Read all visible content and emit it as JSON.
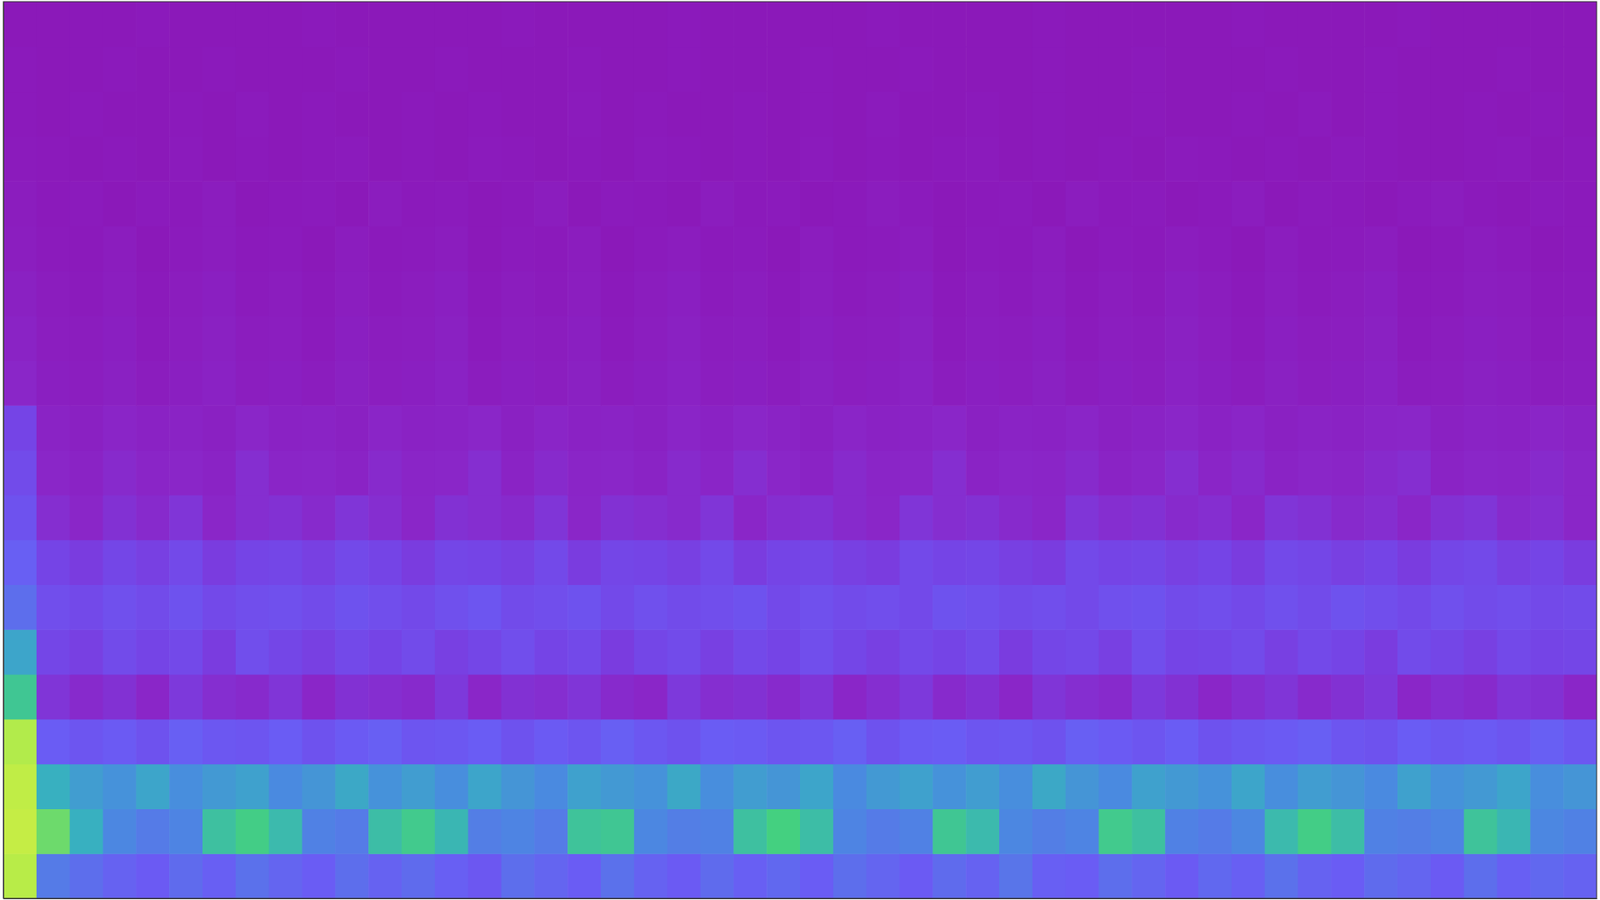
{
  "chart_data": {
    "type": "heatmap",
    "tick_labels": false,
    "xlim": [
      0,
      48
    ],
    "ylim": [
      0,
      20
    ],
    "zlim": [
      0,
      1
    ],
    "z": [
      [
        0.85,
        0.4,
        0.36,
        0.32,
        0.29,
        0.35,
        0.31,
        0.37,
        0.33,
        0.3,
        0.36,
        0.32,
        0.35,
        0.31,
        0.28,
        0.36,
        0.33,
        0.3,
        0.37,
        0.32,
        0.29,
        0.35,
        0.31,
        0.34,
        0.3,
        0.36,
        0.33,
        0.29,
        0.35,
        0.32,
        0.38,
        0.31,
        0.3,
        0.36,
        0.33,
        0.29,
        0.34,
        0.31,
        0.37,
        0.32,
        0.3,
        0.35,
        0.33,
        0.29,
        0.36,
        0.31,
        0.34,
        0.32
      ],
      [
        0.9,
        0.72,
        0.55,
        0.44,
        0.4,
        0.43,
        0.6,
        0.64,
        0.58,
        0.42,
        0.4,
        0.59,
        0.63,
        0.57,
        0.41,
        0.43,
        0.4,
        0.61,
        0.62,
        0.44,
        0.41,
        0.42,
        0.6,
        0.65,
        0.59,
        0.43,
        0.4,
        0.42,
        0.62,
        0.58,
        0.44,
        0.41,
        0.43,
        0.63,
        0.6,
        0.42,
        0.4,
        0.44,
        0.58,
        0.64,
        0.59,
        0.42,
        0.41,
        0.43,
        0.61,
        0.57,
        0.44,
        0.42
      ],
      [
        0.88,
        0.55,
        0.5,
        0.47,
        0.52,
        0.46,
        0.49,
        0.51,
        0.45,
        0.48,
        0.53,
        0.47,
        0.5,
        0.46,
        0.52,
        0.48,
        0.45,
        0.51,
        0.49,
        0.47,
        0.53,
        0.46,
        0.5,
        0.48,
        0.52,
        0.45,
        0.49,
        0.51,
        0.47,
        0.5,
        0.46,
        0.53,
        0.48,
        0.45,
        0.51,
        0.49,
        0.47,
        0.52,
        0.46,
        0.5,
        0.48,
        0.45,
        0.51,
        0.47,
        0.49,
        0.52,
        0.46,
        0.48
      ],
      [
        0.84,
        0.3,
        0.27,
        0.29,
        0.26,
        0.31,
        0.28,
        0.27,
        0.3,
        0.26,
        0.29,
        0.31,
        0.27,
        0.28,
        0.3,
        0.26,
        0.29,
        0.27,
        0.31,
        0.28,
        0.26,
        0.3,
        0.29,
        0.27,
        0.28,
        0.31,
        0.26,
        0.29,
        0.3,
        0.27,
        0.28,
        0.26,
        0.31,
        0.29,
        0.27,
        0.3,
        0.26,
        0.28,
        0.29,
        0.31,
        0.27,
        0.26,
        0.3,
        0.28,
        0.29,
        0.27,
        0.31,
        0.28
      ],
      [
        0.62,
        0.16,
        0.13,
        0.15,
        0.12,
        0.17,
        0.14,
        0.13,
        0.16,
        0.12,
        0.15,
        0.14,
        0.13,
        0.17,
        0.12,
        0.15,
        0.14,
        0.16,
        0.13,
        0.12,
        0.17,
        0.14,
        0.15,
        0.13,
        0.16,
        0.12,
        0.14,
        0.17,
        0.13,
        0.15,
        0.12,
        0.16,
        0.14,
        0.13,
        0.17,
        0.15,
        0.12,
        0.14,
        0.16,
        0.13,
        0.15,
        0.17,
        0.12,
        0.14,
        0.13,
        0.16,
        0.15,
        0.12
      ],
      [
        0.52,
        0.21,
        0.19,
        0.23,
        0.2,
        0.22,
        0.18,
        0.24,
        0.21,
        0.19,
        0.22,
        0.2,
        0.23,
        0.19,
        0.21,
        0.24,
        0.2,
        0.22,
        0.18,
        0.21,
        0.23,
        0.19,
        0.22,
        0.2,
        0.24,
        0.21,
        0.19,
        0.22,
        0.2,
        0.23,
        0.18,
        0.21,
        0.22,
        0.19,
        0.24,
        0.2,
        0.21,
        0.23,
        0.19,
        0.22,
        0.2,
        0.18,
        0.23,
        0.21,
        0.19,
        0.22,
        0.2,
        0.21
      ],
      [
        0.36,
        0.24,
        0.22,
        0.25,
        0.23,
        0.26,
        0.22,
        0.24,
        0.25,
        0.23,
        0.26,
        0.24,
        0.22,
        0.25,
        0.27,
        0.23,
        0.24,
        0.26,
        0.22,
        0.25,
        0.23,
        0.24,
        0.26,
        0.22,
        0.25,
        0.23,
        0.24,
        0.22,
        0.26,
        0.25,
        0.23,
        0.24,
        0.22,
        0.25,
        0.26,
        0.23,
        0.24,
        0.22,
        0.25,
        0.23,
        0.26,
        0.24,
        0.22,
        0.25,
        0.23,
        0.24,
        0.22,
        0.23
      ],
      [
        0.31,
        0.2,
        0.18,
        0.21,
        0.19,
        0.22,
        0.18,
        0.2,
        0.21,
        0.19,
        0.22,
        0.2,
        0.18,
        0.21,
        0.2,
        0.19,
        0.22,
        0.18,
        0.21,
        0.2,
        0.19,
        0.22,
        0.18,
        0.2,
        0.21,
        0.19,
        0.18,
        0.22,
        0.2,
        0.21,
        0.19,
        0.18,
        0.22,
        0.2,
        0.21,
        0.19,
        0.2,
        0.18,
        0.22,
        0.21,
        0.19,
        0.2,
        0.18,
        0.21,
        0.22,
        0.19,
        0.2,
        0.18
      ],
      [
        0.26,
        0.14,
        0.12,
        0.15,
        0.13,
        0.16,
        0.12,
        0.14,
        0.15,
        0.13,
        0.16,
        0.14,
        0.12,
        0.15,
        0.14,
        0.13,
        0.16,
        0.12,
        0.15,
        0.14,
        0.13,
        0.16,
        0.12,
        0.14,
        0.15,
        0.13,
        0.12,
        0.16,
        0.14,
        0.15,
        0.13,
        0.12,
        0.16,
        0.14,
        0.15,
        0.13,
        0.14,
        0.12,
        0.16,
        0.15,
        0.13,
        0.14,
        0.12,
        0.15,
        0.16,
        0.13,
        0.14,
        0.12
      ],
      [
        0.23,
        0.12,
        0.1,
        0.13,
        0.11,
        0.12,
        0.1,
        0.14,
        0.11,
        0.12,
        0.1,
        0.13,
        0.11,
        0.12,
        0.14,
        0.1,
        0.13,
        0.11,
        0.12,
        0.1,
        0.13,
        0.11,
        0.14,
        0.12,
        0.1,
        0.13,
        0.11,
        0.12,
        0.14,
        0.1,
        0.12,
        0.11,
        0.13,
        0.1,
        0.12,
        0.14,
        0.11,
        0.13,
        0.1,
        0.12,
        0.11,
        0.13,
        0.14,
        0.1,
        0.12,
        0.11,
        0.13,
        0.12
      ],
      [
        0.2,
        0.1,
        0.08,
        0.11,
        0.09,
        0.1,
        0.08,
        0.12,
        0.09,
        0.1,
        0.08,
        0.11,
        0.09,
        0.1,
        0.12,
        0.08,
        0.11,
        0.09,
        0.1,
        0.08,
        0.11,
        0.09,
        0.12,
        0.1,
        0.08,
        0.11,
        0.09,
        0.1,
        0.12,
        0.08,
        0.1,
        0.09,
        0.11,
        0.08,
        0.1,
        0.12,
        0.09,
        0.11,
        0.08,
        0.1,
        0.09,
        0.11,
        0.12,
        0.08,
        0.1,
        0.09,
        0.11,
        0.1
      ],
      [
        0.12,
        0.07,
        0.06,
        0.08,
        0.05,
        0.07,
        0.09,
        0.06,
        0.07,
        0.05,
        0.08,
        0.06,
        0.07,
        0.09,
        0.05,
        0.07,
        0.06,
        0.08,
        0.05,
        0.07,
        0.09,
        0.06,
        0.07,
        0.05,
        0.08,
        0.06,
        0.07,
        0.09,
        0.05,
        0.07,
        0.06,
        0.08,
        0.05,
        0.07,
        0.06,
        0.09,
        0.07,
        0.05,
        0.08,
        0.06,
        0.07,
        0.09,
        0.05,
        0.06,
        0.08,
        0.07,
        0.05,
        0.06
      ],
      [
        0.1,
        0.06,
        0.05,
        0.07,
        0.04,
        0.06,
        0.08,
        0.05,
        0.06,
        0.04,
        0.07,
        0.05,
        0.06,
        0.08,
        0.04,
        0.06,
        0.05,
        0.07,
        0.04,
        0.06,
        0.08,
        0.05,
        0.06,
        0.04,
        0.07,
        0.05,
        0.06,
        0.08,
        0.04,
        0.06,
        0.05,
        0.07,
        0.04,
        0.06,
        0.05,
        0.08,
        0.06,
        0.04,
        0.07,
        0.05,
        0.06,
        0.08,
        0.04,
        0.05,
        0.07,
        0.06,
        0.04,
        0.05
      ],
      [
        0.08,
        0.05,
        0.04,
        0.06,
        0.03,
        0.05,
        0.07,
        0.04,
        0.05,
        0.03,
        0.06,
        0.04,
        0.05,
        0.07,
        0.03,
        0.05,
        0.04,
        0.06,
        0.03,
        0.05,
        0.07,
        0.04,
        0.05,
        0.03,
        0.06,
        0.04,
        0.05,
        0.07,
        0.03,
        0.05,
        0.04,
        0.06,
        0.03,
        0.05,
        0.04,
        0.07,
        0.05,
        0.03,
        0.06,
        0.04,
        0.05,
        0.07,
        0.03,
        0.04,
        0.06,
        0.05,
        0.03,
        0.04
      ],
      [
        0.06,
        0.04,
        0.03,
        0.05,
        0.02,
        0.04,
        0.05,
        0.03,
        0.04,
        0.02,
        0.05,
        0.03,
        0.04,
        0.05,
        0.02,
        0.04,
        0.03,
        0.05,
        0.02,
        0.04,
        0.05,
        0.03,
        0.04,
        0.02,
        0.05,
        0.03,
        0.04,
        0.05,
        0.02,
        0.04,
        0.03,
        0.05,
        0.02,
        0.04,
        0.03,
        0.05,
        0.04,
        0.02,
        0.05,
        0.03,
        0.04,
        0.05,
        0.02,
        0.03,
        0.05,
        0.04,
        0.02,
        0.03
      ],
      [
        0.05,
        0.03,
        0.04,
        0.02,
        0.04,
        0.03,
        0.05,
        0.02,
        0.03,
        0.04,
        0.02,
        0.05,
        0.03,
        0.04,
        0.02,
        0.03,
        0.05,
        0.02,
        0.04,
        0.03,
        0.02,
        0.05,
        0.03,
        0.04,
        0.02,
        0.03,
        0.05,
        0.04,
        0.02,
        0.03,
        0.04,
        0.02,
        0.05,
        0.03,
        0.04,
        0.02,
        0.03,
        0.05,
        0.02,
        0.04,
        0.03,
        0.02,
        0.04,
        0.05,
        0.03,
        0.02,
        0.04,
        0.03
      ],
      [
        0.04,
        0.03,
        0.02,
        0.03,
        0.02,
        0.04,
        0.02,
        0.03,
        0.02,
        0.03,
        0.04,
        0.02,
        0.03,
        0.02,
        0.04,
        0.03,
        0.02,
        0.03,
        0.02,
        0.04,
        0.03,
        0.02,
        0.03,
        0.02,
        0.04,
        0.02,
        0.03,
        0.02,
        0.03,
        0.04,
        0.02,
        0.03,
        0.02,
        0.03,
        0.02,
        0.04,
        0.03,
        0.02,
        0.03,
        0.02,
        0.04,
        0.03,
        0.02,
        0.02,
        0.03,
        0.04,
        0.02,
        0.03
      ],
      [
        0.03,
        0.02,
        0.03,
        0.02,
        0.02,
        0.03,
        0.02,
        0.04,
        0.02,
        0.03,
        0.02,
        0.02,
        0.03,
        0.02,
        0.03,
        0.02,
        0.02,
        0.04,
        0.02,
        0.03,
        0.02,
        0.02,
        0.03,
        0.02,
        0.03,
        0.02,
        0.04,
        0.02,
        0.02,
        0.03,
        0.02,
        0.03,
        0.02,
        0.02,
        0.03,
        0.02,
        0.02,
        0.03,
        0.02,
        0.04,
        0.02,
        0.03,
        0.02,
        0.02,
        0.03,
        0.02,
        0.03,
        0.02
      ],
      [
        0.03,
        0.02,
        0.02,
        0.03,
        0.02,
        0.02,
        0.03,
        0.02,
        0.02,
        0.02,
        0.03,
        0.02,
        0.02,
        0.03,
        0.02,
        0.02,
        0.02,
        0.03,
        0.02,
        0.02,
        0.03,
        0.02,
        0.02,
        0.02,
        0.03,
        0.02,
        0.02,
        0.03,
        0.02,
        0.02,
        0.02,
        0.03,
        0.02,
        0.02,
        0.03,
        0.02,
        0.02,
        0.02,
        0.03,
        0.02,
        0.02,
        0.03,
        0.02,
        0.02,
        0.02,
        0.03,
        0.02,
        0.02
      ],
      [
        0.02,
        0.02,
        0.02,
        0.02,
        0.03,
        0.02,
        0.02,
        0.02,
        0.02,
        0.03,
        0.02,
        0.02,
        0.02,
        0.02,
        0.02,
        0.03,
        0.02,
        0.02,
        0.02,
        0.02,
        0.03,
        0.02,
        0.02,
        0.02,
        0.02,
        0.02,
        0.03,
        0.02,
        0.02,
        0.02,
        0.02,
        0.03,
        0.02,
        0.02,
        0.02,
        0.02,
        0.02,
        0.03,
        0.02,
        0.02,
        0.02,
        0.02,
        0.03,
        0.02,
        0.02,
        0.02,
        0.02,
        0.02
      ]
    ]
  }
}
